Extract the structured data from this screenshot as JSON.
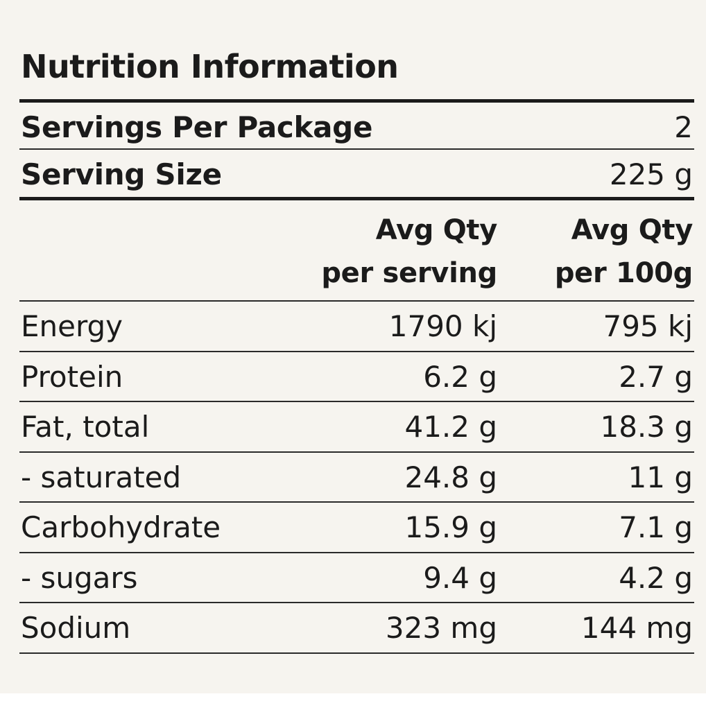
{
  "title": "Nutrition Information",
  "servings_per_package": {
    "label": "Servings Per Package",
    "value": "2"
  },
  "serving_size": {
    "label": "Serving Size",
    "value": "225 g"
  },
  "columns": {
    "per_serving": {
      "line1": "Avg Qty",
      "line2": "per serving"
    },
    "per_100g": {
      "line1": "Avg Qty",
      "line2": "per 100g"
    }
  },
  "rows": [
    {
      "name": "Energy",
      "per_serving": "1790 kj",
      "per_100g": "795 kj"
    },
    {
      "name": "Protein",
      "per_serving": "6.2 g",
      "per_100g": "2.7 g"
    },
    {
      "name": "Fat, total",
      "per_serving": "41.2 g",
      "per_100g": "18.3 g"
    },
    {
      "name": "- saturated",
      "per_serving": "24.8 g",
      "per_100g": "11 g"
    },
    {
      "name": "Carbohydrate",
      "per_serving": "15.9 g",
      "per_100g": "7.1 g"
    },
    {
      "name": "- sugars",
      "per_serving": "9.4 g",
      "per_100g": "4.2 g"
    },
    {
      "name": "Sodium",
      "per_serving": "323 mg",
      "per_100g": "144 mg"
    }
  ]
}
